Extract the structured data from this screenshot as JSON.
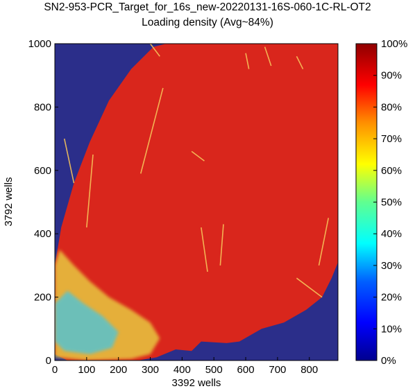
{
  "chart_data": {
    "type": "heatmap",
    "title": [
      "SN2-953-PCR_Target_for_16s_new-20220131-16S-060-1C-RL-OT2",
      "Loading density (Avg~84%)"
    ],
    "xlabel": "3392 wells",
    "ylabel": "3792 wells",
    "xlim": [
      0,
      890
    ],
    "ylim": [
      0,
      1000
    ],
    "x_ticks": [
      "0",
      "100",
      "200",
      "300",
      "400",
      "500",
      "600",
      "700",
      "800"
    ],
    "y_ticks": [
      "0",
      "200",
      "400",
      "600",
      "800",
      "1000"
    ],
    "colorbar": {
      "range_percent": [
        0,
        100
      ],
      "tick_labels": [
        "0%",
        "10%",
        "20%",
        "30%",
        "40%",
        "50%",
        "60%",
        "70%",
        "80%",
        "90%",
        "100%"
      ],
      "colormap": "jet"
    },
    "average_density_percent": 84,
    "colors": {
      "empty": "#2b2e8a",
      "dense": "#d9261c",
      "sparse": "#4fc4d8"
    }
  }
}
